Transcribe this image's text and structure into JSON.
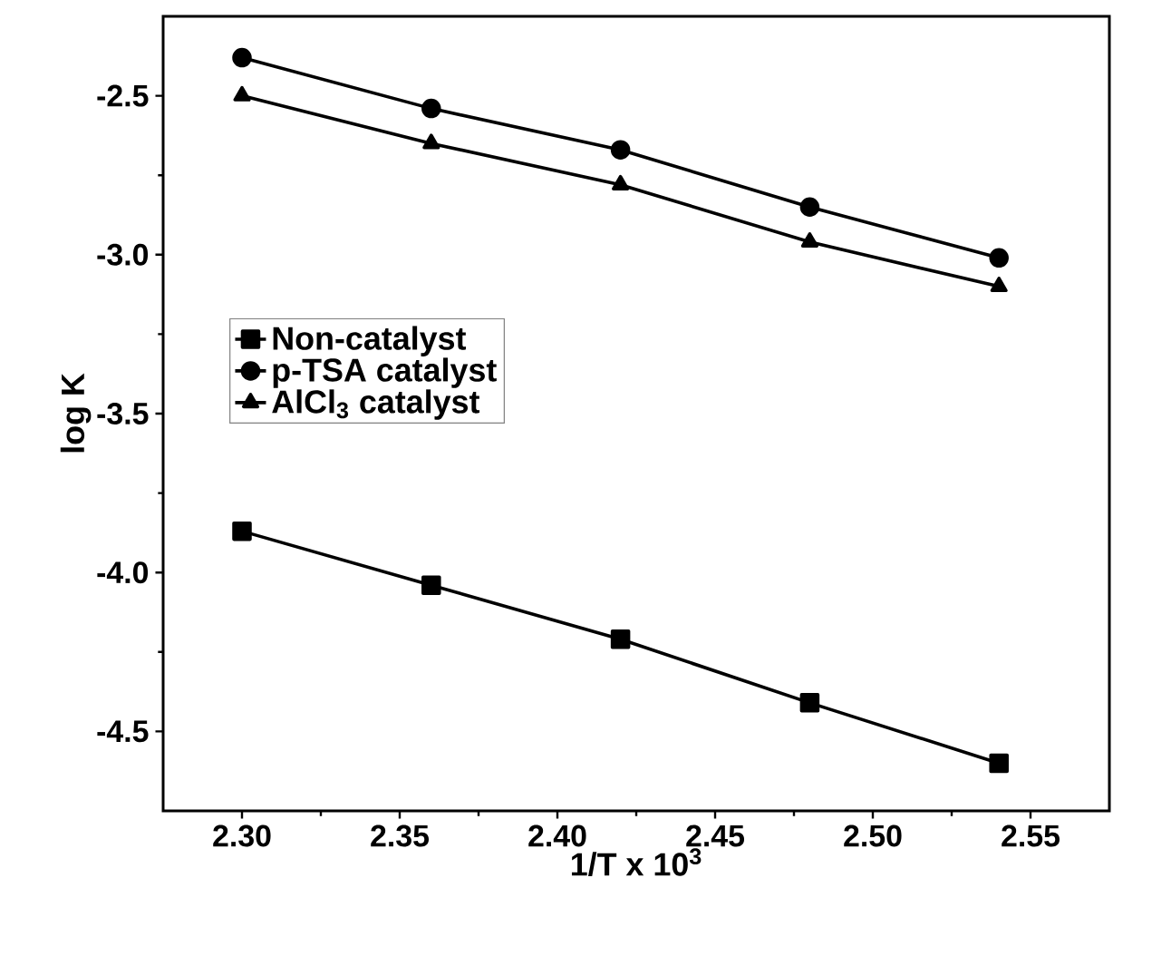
{
  "chart_data": {
    "type": "line",
    "xlabel": "1/T x 10$^{3}$",
    "ylabel": "log K",
    "x": [
      2.3,
      2.36,
      2.42,
      2.48,
      2.54
    ],
    "series": [
      {
        "name": "Non-catalyst",
        "color": "#000000",
        "marker": "square",
        "values": [
          -3.87,
          -4.04,
          -4.21,
          -4.41,
          -4.6
        ]
      },
      {
        "name": "p-TSA catalyst",
        "color": "#000000",
        "marker": "circle",
        "values": [
          -2.38,
          -2.54,
          -2.67,
          -2.85,
          -3.01
        ]
      },
      {
        "name": "AlCl$_{3}$ catalyst",
        "color": "#000000",
        "marker": "triangle",
        "values": [
          -2.5,
          -2.65,
          -2.78,
          -2.96,
          -3.1
        ]
      }
    ],
    "xlim": [
      2.275,
      2.575
    ],
    "ylim": [
      -4.75,
      -2.25
    ],
    "xticks": [
      {
        "value": 2.3,
        "label": "2.30"
      },
      2.35,
      {
        "value": 2.4,
        "label": "2.40"
      },
      2.45,
      {
        "value": 2.5,
        "label": "2.50"
      },
      2.55
    ],
    "yticks": [
      -2.5,
      {
        "value": -3.0,
        "label": "-3.0"
      },
      -3.5,
      {
        "value": -4.0,
        "label": "-4.0"
      },
      -4.5
    ],
    "legend": "left",
    "grid": false,
    "line_style": "solid"
  }
}
